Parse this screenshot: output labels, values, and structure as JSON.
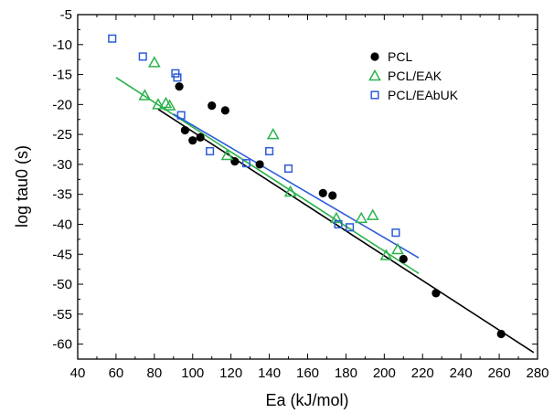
{
  "chart_data": {
    "type": "scatter",
    "xlabel": "Ea (kJ/mol)",
    "ylabel": "log tau0 (s)",
    "xlim": [
      40,
      280
    ],
    "ylim": [
      -62.5,
      -5
    ],
    "x_ticks": [
      40,
      60,
      80,
      100,
      120,
      140,
      160,
      180,
      200,
      220,
      240,
      260,
      280
    ],
    "y_ticks": [
      -5,
      -10,
      -15,
      -20,
      -25,
      -30,
      -35,
      -40,
      -45,
      -50,
      -55,
      -60
    ],
    "grid": false,
    "legend_position": "top-right",
    "series": [
      {
        "name": "PCL",
        "marker": "filled-circle",
        "color": "#000000",
        "points": [
          [
            93,
            -17
          ],
          [
            96,
            -24.3
          ],
          [
            100,
            -26
          ],
          [
            104,
            -25.5
          ],
          [
            110,
            -20.2
          ],
          [
            117,
            -21
          ],
          [
            122,
            -29.5
          ],
          [
            135,
            -30
          ],
          [
            168,
            -34.8
          ],
          [
            173,
            -35.2
          ],
          [
            210,
            -45.8
          ],
          [
            227,
            -51.5
          ],
          [
            261,
            -58.3
          ]
        ],
        "fit": {
          "x": [
            82,
            278
          ],
          "y": [
            -20.8,
            -61.4
          ],
          "color": "#000000"
        }
      },
      {
        "name": "PCL/EAK",
        "marker": "open-triangle",
        "color": "#2bb24c",
        "points": [
          [
            75,
            -18.5
          ],
          [
            80,
            -13
          ],
          [
            82,
            -20
          ],
          [
            86,
            -19.8
          ],
          [
            88,
            -20.2
          ],
          [
            118,
            -28.5
          ],
          [
            142,
            -25
          ],
          [
            151,
            -34.6
          ],
          [
            175,
            -39
          ],
          [
            188,
            -39
          ],
          [
            194,
            -38.5
          ],
          [
            201,
            -45.2
          ],
          [
            207,
            -44.2
          ]
        ],
        "fit": {
          "x": [
            60,
            218
          ],
          "y": [
            -15.5,
            -48.2
          ],
          "color": "#2bb24c"
        }
      },
      {
        "name": "PCL/EAbUK",
        "marker": "open-square",
        "color": "#2d5bd8",
        "points": [
          [
            58,
            -9
          ],
          [
            74,
            -12
          ],
          [
            91,
            -14.8
          ],
          [
            92,
            -15.5
          ],
          [
            94,
            -21.8
          ],
          [
            109,
            -27.8
          ],
          [
            128,
            -29.8
          ],
          [
            140,
            -27.8
          ],
          [
            150,
            -30.7
          ],
          [
            176,
            -40
          ],
          [
            182,
            -40.5
          ],
          [
            206,
            -41.4
          ]
        ],
        "fit": {
          "x": [
            90,
            218
          ],
          "y": [
            -21.6,
            -45.6
          ],
          "color": "#2d5bd8"
        }
      }
    ]
  }
}
